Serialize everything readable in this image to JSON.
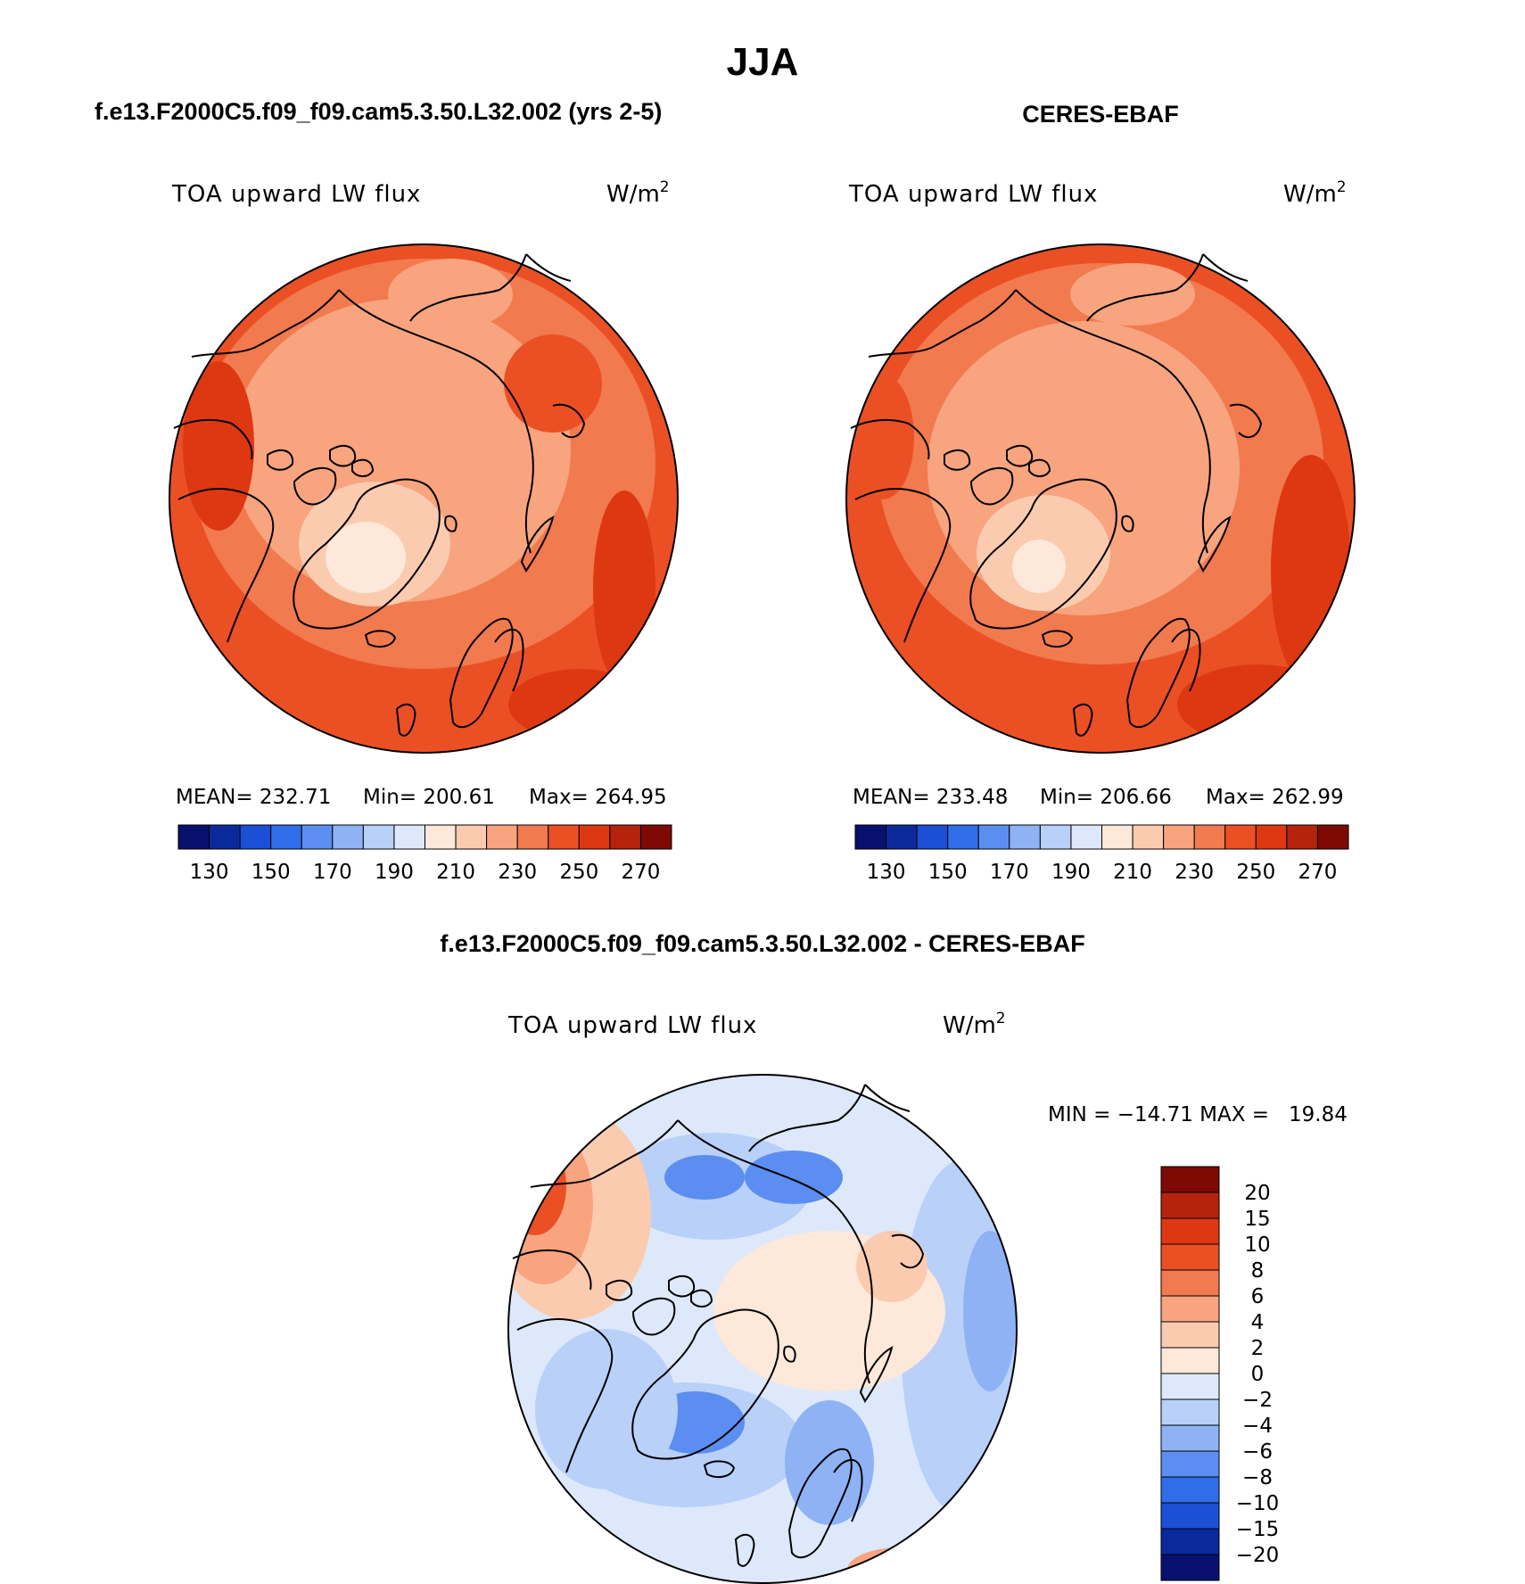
{
  "title": "JJA",
  "panels": [
    {
      "id": "model",
      "heading": "f.e13.F2000C5.f09_f09.cam5.3.50.L32.002 (yrs 2-5)",
      "variable": "TOA upward LW flux",
      "units": "W/m",
      "units_sup": "2",
      "stats": {
        "mean_label": "MEAN=",
        "mean": "232.71",
        "min_label": "Min=",
        "min": "200.61",
        "max_label": "Max=",
        "max": "264.95"
      },
      "colorbar_ticks": [
        "130",
        "150",
        "170",
        "190",
        "210",
        "230",
        "250",
        "270"
      ],
      "field": "model"
    },
    {
      "id": "obs",
      "heading": "CERES-EBAF",
      "variable": "TOA upward LW flux",
      "units": "W/m",
      "units_sup": "2",
      "stats": {
        "mean_label": "MEAN=",
        "mean": "233.48",
        "min_label": "Min=",
        "min": "206.66",
        "max_label": "Max=",
        "max": "262.99"
      },
      "colorbar_ticks": [
        "130",
        "150",
        "170",
        "190",
        "210",
        "230",
        "250",
        "270"
      ],
      "field": "obs"
    }
  ],
  "difference": {
    "heading": "f.e13.F2000C5.f09_f09.cam5.3.50.L32.002 - CERES-EBAF",
    "variable": "TOA upward LW flux",
    "units": "W/m",
    "units_sup": "2",
    "minmax_text": "MIN = −14.71 MAX =   19.84",
    "colorbar_labels": [
      "20",
      "15",
      "10",
      "8",
      "6",
      "4",
      "2",
      "0",
      "−2",
      "−4",
      "−6",
      "−8",
      "−10",
      "−15",
      "−20"
    ]
  },
  "abs_colors": [
    "#08106e",
    "#0a2a9c",
    "#1a4fd6",
    "#2f6ee8",
    "#5b8ef0",
    "#8fb2f5",
    "#b9d0f8",
    "#dde9fb",
    "#fde8d9",
    "#fbcbb0",
    "#f7a47f",
    "#f27a4f",
    "#eb5024",
    "#dd3812",
    "#b6230c",
    "#7d0a05"
  ],
  "diff_colors": [
    "#7d0a05",
    "#b6230c",
    "#dd3812",
    "#eb5024",
    "#f27a4f",
    "#f7a47f",
    "#fbcbb0",
    "#fde8d9",
    "#dde9fb",
    "#b9d0f8",
    "#8fb2f5",
    "#5b8ef0",
    "#2f6ee8",
    "#1a4fd6",
    "#0a2a9c",
    "#08106e"
  ]
}
